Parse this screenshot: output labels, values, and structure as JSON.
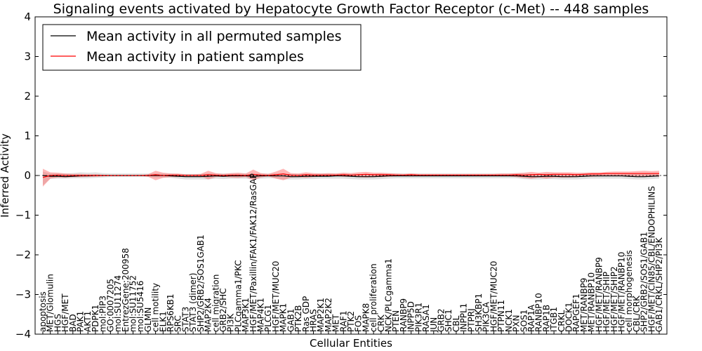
{
  "chart_data": {
    "type": "line",
    "title": "Signaling events activated by Hepatocyte Growth Factor Receptor (c-Met) -- 448 samples",
    "xlabel": "Cellular Entities",
    "ylabel": "Inferred Activity",
    "ylim": [
      -4,
      4
    ],
    "yticks": [
      -4,
      -3,
      -2,
      -1,
      0,
      1,
      2,
      3,
      4
    ],
    "ytick_labels": [
      "−4",
      "−3",
      "−2",
      "−1",
      "0",
      "1",
      "2",
      "3",
      "4"
    ],
    "legend_position": "top-left",
    "categories": [
      "apoptosis",
      "MET/Glomulin",
      "HGS",
      "HGF/MET",
      "BAD",
      "PAK1",
      "AKT1",
      "PDPK1",
      "mol:PIP3",
      "GO:0007205",
      "mol:SU11274",
      "EntrezGene:200958",
      "mol:SU11752",
      "mol:SU5416",
      "GLMN",
      "cell motility",
      "ELK1",
      "RPS6KB1",
      "SRC",
      "STAT3",
      "STAT3 (dimer)",
      "SHP2/GRB2/SOS1GAB1",
      "MAP2K4",
      "cell migration",
      "GRB2/SHC",
      "PI3K",
      "PLCgamma1/PKC",
      "MAP3K1",
      "HGF/MET/Paxillin/FAK1/FAK12/RasGAP",
      "MAP4K1",
      "PLCG1",
      "HGF/MET/MUC20",
      "MAPK1",
      "GAB1",
      "PTK2B",
      "Ras GDP",
      "HRAS",
      "MAP2K1",
      "MAP2K2",
      "MET",
      "RAF1",
      "PTK2",
      "FOS",
      "MAPK8",
      "cell proliferation",
      "CRK",
      "NCK/PLCgamma1",
      "PTEN",
      "RANBP9",
      "INPP5D",
      "PIK3R1",
      "RASA1",
      "JUN",
      "GRB2",
      "SHC1",
      "CBL",
      "INPPL1",
      "PTPRJ",
      "SH3KBP1",
      "PIK3CA",
      "HGF/MET/MUC20",
      "PTPN11",
      "NCK1",
      "PXN",
      "SOS1",
      "RAP1A",
      "RANBP10",
      "RAP1B",
      "ITGB1",
      "CRKL",
      "DOCK1",
      "RAPGEF1",
      "MET/RANBP9",
      "MET/RANBP10",
      "HGF/MET/RANBP9",
      "HGF/MET/SHIP",
      "HGF/MET/SHIP2",
      "HGF/MET/RANBP10",
      "cell morphogenesis",
      "CBL/CRK",
      "SHP2/GRB2/SOS1/GAB1",
      "HGF/MET/CIN85/CBL/ENDOPHILINS",
      "GAB1/CRKL/SHP2/PI3K"
    ],
    "series": [
      {
        "name": "Mean activity in all permuted samples",
        "color": "#000000",
        "values": [
          0.0,
          -0.02,
          -0.02,
          -0.03,
          -0.02,
          -0.01,
          -0.01,
          0.0,
          0.0,
          0.0,
          0.0,
          0.0,
          0.0,
          0.0,
          0.0,
          0.0,
          0.0,
          -0.01,
          -0.02,
          -0.03,
          -0.03,
          -0.03,
          -0.02,
          -0.01,
          -0.02,
          -0.01,
          -0.01,
          -0.01,
          -0.02,
          -0.01,
          -0.01,
          -0.01,
          -0.01,
          -0.03,
          -0.03,
          -0.02,
          -0.02,
          -0.02,
          -0.02,
          -0.01,
          -0.01,
          -0.02,
          -0.03,
          -0.03,
          -0.03,
          -0.02,
          -0.01,
          -0.01,
          -0.01,
          -0.01,
          -0.01,
          -0.01,
          -0.01,
          -0.01,
          -0.01,
          -0.01,
          -0.01,
          -0.01,
          -0.01,
          -0.01,
          -0.01,
          -0.01,
          -0.01,
          -0.01,
          -0.02,
          -0.03,
          -0.03,
          -0.02,
          -0.02,
          -0.03,
          -0.03,
          -0.03,
          -0.02,
          -0.01,
          -0.01,
          -0.01,
          -0.01,
          -0.01,
          -0.02,
          -0.03,
          -0.03,
          -0.02,
          -0.01
        ],
        "lower": [
          -0.25,
          -0.08,
          -0.08,
          -0.08,
          -0.07,
          -0.07,
          -0.07,
          -0.06,
          -0.05,
          -0.04,
          -0.04,
          -0.04,
          -0.04,
          -0.04,
          -0.04,
          -0.05,
          -0.05,
          -0.06,
          -0.08,
          -0.1,
          -0.1,
          -0.1,
          -0.1,
          -0.08,
          -0.09,
          -0.08,
          -0.08,
          -0.08,
          -0.1,
          -0.08,
          -0.07,
          -0.07,
          -0.1,
          -0.1,
          -0.1,
          -0.09,
          -0.09,
          -0.08,
          -0.08,
          -0.08,
          -0.08,
          -0.09,
          -0.1,
          -0.1,
          -0.1,
          -0.09,
          -0.08,
          -0.07,
          -0.07,
          -0.07,
          -0.07,
          -0.07,
          -0.07,
          -0.07,
          -0.07,
          -0.07,
          -0.07,
          -0.07,
          -0.07,
          -0.07,
          -0.07,
          -0.07,
          -0.07,
          -0.07,
          -0.09,
          -0.1,
          -0.1,
          -0.09,
          -0.09,
          -0.1,
          -0.1,
          -0.1,
          -0.09,
          -0.08,
          -0.08,
          -0.08,
          -0.08,
          -0.08,
          -0.09,
          -0.1,
          -0.1,
          -0.09,
          -0.08
        ],
        "upper": [
          0.1,
          0.05,
          0.05,
          0.05,
          0.06,
          0.08,
          0.07,
          0.08,
          0.06,
          0.05,
          0.05,
          0.05,
          0.05,
          0.05,
          0.05,
          0.05,
          0.05,
          0.05,
          0.04,
          0.04,
          0.04,
          0.04,
          0.05,
          0.05,
          0.05,
          0.05,
          0.05,
          0.05,
          0.04,
          0.05,
          0.05,
          0.05,
          0.04,
          0.04,
          0.04,
          0.04,
          0.04,
          0.05,
          0.05,
          0.05,
          0.05,
          0.04,
          0.04,
          0.04,
          0.04,
          0.05,
          0.05,
          0.05,
          0.05,
          0.05,
          0.05,
          0.05,
          0.05,
          0.05,
          0.05,
          0.05,
          0.05,
          0.05,
          0.05,
          0.05,
          0.05,
          0.05,
          0.05,
          0.05,
          0.05,
          0.04,
          0.04,
          0.05,
          0.05,
          0.04,
          0.04,
          0.04,
          0.05,
          0.05,
          0.05,
          0.05,
          0.05,
          0.05,
          0.05,
          0.04,
          0.04,
          0.05,
          0.05
        ]
      },
      {
        "name": "Mean activity in patient samples",
        "color": "#ff0000",
        "values": [
          -0.05,
          0.0,
          0.01,
          0.0,
          0.0,
          0.0,
          0.0,
          0.0,
          0.0,
          0.0,
          0.0,
          0.0,
          0.0,
          0.0,
          0.0,
          0.02,
          0.0,
          0.01,
          0.01,
          0.0,
          0.0,
          0.0,
          0.02,
          0.01,
          0.0,
          0.01,
          0.01,
          0.0,
          0.03,
          0.01,
          0.0,
          0.02,
          0.04,
          0.01,
          0.0,
          0.02,
          0.01,
          0.01,
          0.01,
          0.01,
          0.02,
          0.01,
          0.02,
          0.03,
          0.02,
          0.02,
          0.02,
          0.01,
          0.01,
          0.02,
          0.01,
          0.01,
          0.01,
          0.01,
          0.01,
          0.01,
          0.01,
          0.01,
          0.01,
          0.01,
          0.01,
          0.01,
          0.01,
          0.02,
          0.01,
          0.02,
          0.03,
          0.02,
          0.03,
          0.03,
          0.03,
          0.02,
          0.03,
          0.04,
          0.04,
          0.05,
          0.05,
          0.05,
          0.05,
          0.05,
          0.05,
          0.05,
          0.05
        ],
        "lower": [
          -0.28,
          -0.08,
          -0.05,
          -0.05,
          -0.04,
          -0.04,
          -0.03,
          -0.03,
          -0.02,
          -0.01,
          -0.01,
          -0.01,
          -0.01,
          -0.01,
          -0.03,
          -0.12,
          -0.06,
          -0.04,
          -0.04,
          -0.02,
          -0.02,
          -0.02,
          -0.1,
          -0.04,
          -0.03,
          -0.05,
          -0.06,
          -0.04,
          -0.12,
          -0.05,
          -0.02,
          -0.08,
          -0.12,
          -0.05,
          -0.04,
          -0.06,
          -0.04,
          -0.03,
          -0.02,
          -0.01,
          -0.03,
          -0.03,
          -0.04,
          -0.05,
          -0.04,
          -0.04,
          -0.03,
          -0.02,
          -0.01,
          -0.02,
          -0.01,
          -0.01,
          -0.01,
          -0.01,
          -0.01,
          -0.01,
          -0.01,
          -0.01,
          -0.01,
          -0.01,
          -0.01,
          -0.02,
          -0.02,
          -0.04,
          -0.06,
          -0.08,
          -0.05,
          -0.08,
          -0.05,
          -0.05,
          -0.05,
          -0.04,
          -0.03,
          -0.03,
          -0.02,
          -0.01,
          -0.02,
          -0.02,
          -0.03,
          -0.02,
          -0.02,
          -0.02,
          -0.03
        ],
        "upper": [
          0.17,
          0.08,
          0.07,
          0.05,
          0.04,
          0.04,
          0.03,
          0.03,
          0.02,
          0.01,
          0.01,
          0.01,
          0.01,
          0.01,
          0.03,
          0.12,
          0.07,
          0.05,
          0.05,
          0.03,
          0.03,
          0.04,
          0.12,
          0.06,
          0.04,
          0.06,
          0.07,
          0.05,
          0.15,
          0.06,
          0.04,
          0.1,
          0.17,
          0.06,
          0.05,
          0.08,
          0.06,
          0.05,
          0.06,
          0.05,
          0.07,
          0.06,
          0.08,
          0.09,
          0.07,
          0.07,
          0.06,
          0.05,
          0.04,
          0.05,
          0.04,
          0.04,
          0.04,
          0.04,
          0.04,
          0.04,
          0.04,
          0.04,
          0.04,
          0.04,
          0.04,
          0.05,
          0.05,
          0.06,
          0.07,
          0.09,
          0.07,
          0.09,
          0.08,
          0.08,
          0.08,
          0.07,
          0.07,
          0.08,
          0.08,
          0.09,
          0.1,
          0.1,
          0.1,
          0.11,
          0.12,
          0.11,
          0.12
        ]
      }
    ]
  }
}
